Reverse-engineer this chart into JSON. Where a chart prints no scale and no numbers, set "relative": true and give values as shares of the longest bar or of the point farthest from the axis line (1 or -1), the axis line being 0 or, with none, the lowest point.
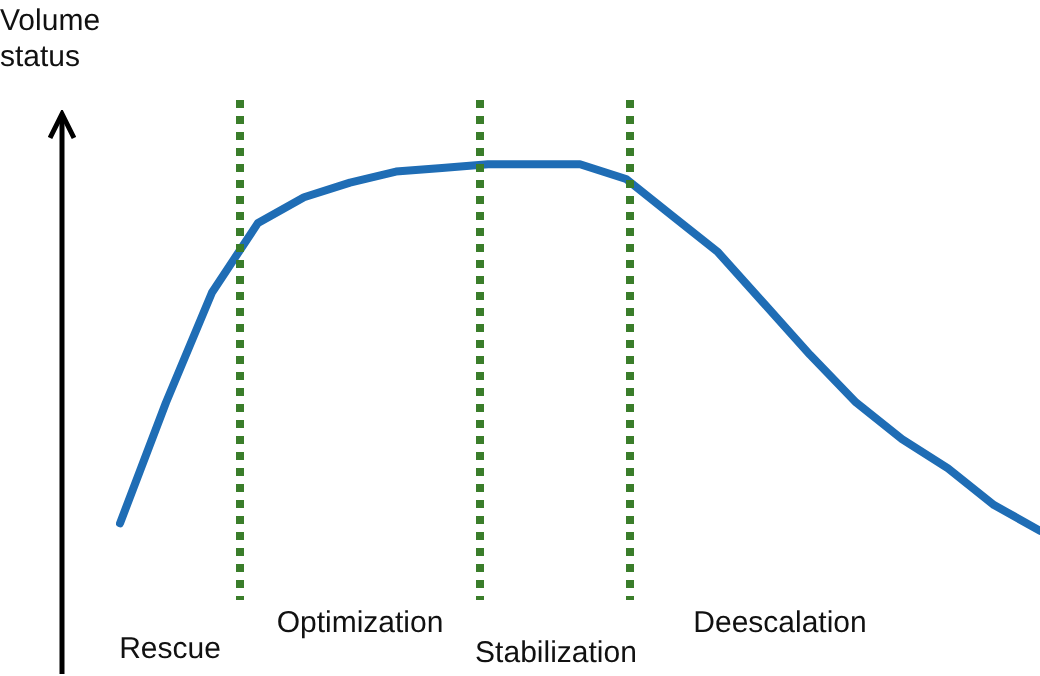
{
  "chart_data": {
    "type": "line",
    "relative": true,
    "ylabel": "Volume status",
    "marker": "none",
    "line_style": "solid",
    "categories": [
      null,
      null,
      null,
      null,
      null,
      null,
      null,
      null,
      null,
      null,
      null,
      null,
      null,
      null,
      null,
      null,
      null,
      null,
      null,
      null,
      null
    ],
    "series": [
      {
        "color": "#1f6db5",
        "values": [
          0.02,
          0.35,
          0.65,
          0.84,
          0.91,
          0.95,
          0.98,
          0.99,
          1,
          1,
          1,
          0.96,
          0.86,
          0.76,
          0.62,
          0.48,
          0.35,
          0.25,
          0.17,
          0.07,
          0
        ]
      }
    ],
    "annotations": [
      "Rescue",
      "Optimization",
      "Stabilization",
      "Deescalation"
    ]
  }
}
